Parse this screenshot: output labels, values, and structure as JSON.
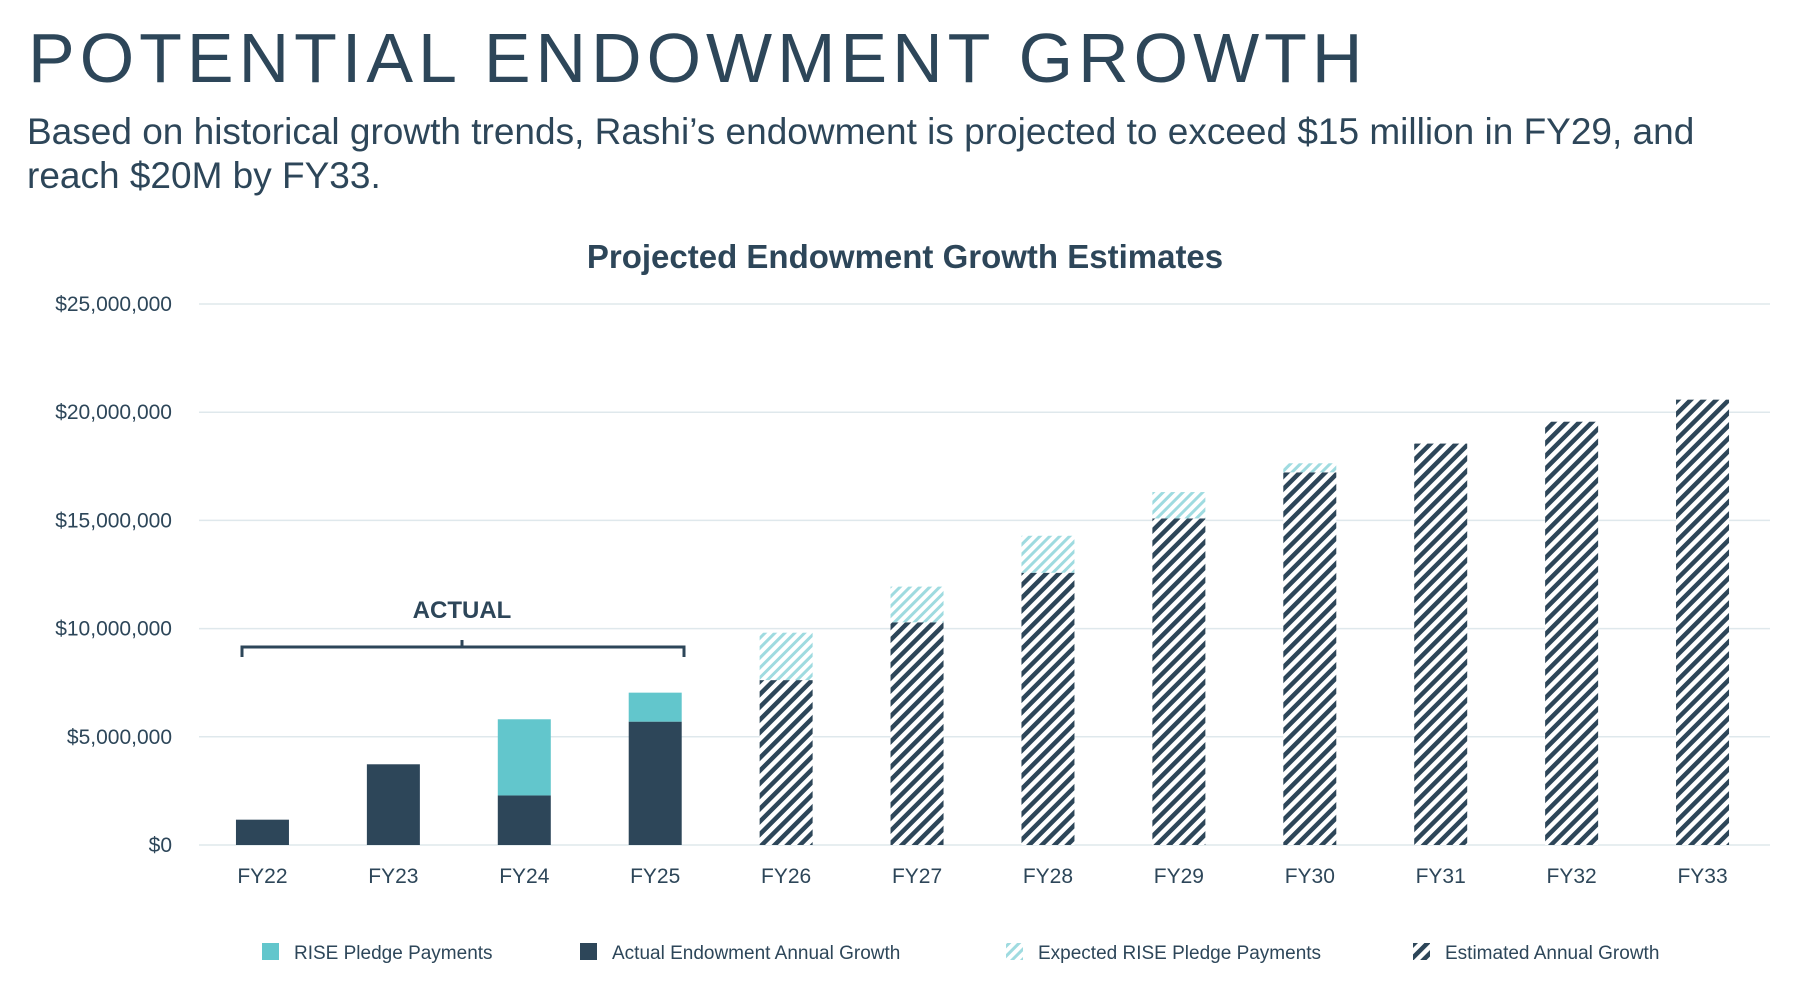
{
  "header": {
    "title": "POTENTIAL ENDOWMENT GROWTH",
    "subtitle": "Based on historical growth trends, Rashi’s endowment is projected to exceed $15 million in FY29, and reach $20M by FY33."
  },
  "chart_data": {
    "type": "bar",
    "stacked": true,
    "title": "Projected Endowment Growth Estimates",
    "xlabel": "",
    "ylabel": "",
    "ylim": [
      0,
      25000000
    ],
    "yticks": [
      0,
      5000000,
      10000000,
      15000000,
      20000000,
      25000000
    ],
    "ytick_labels": [
      "$0",
      "$5,000,000",
      "$10,000,000",
      "$15,000,000",
      "$20,000,000",
      "$25,000,000"
    ],
    "grid": true,
    "categories": [
      "FY22",
      "FY23",
      "FY24",
      "FY25",
      "FY26",
      "FY27",
      "FY28",
      "FY29",
      "FY30",
      "FY31",
      "FY32",
      "FY33"
    ],
    "series": [
      {
        "name": "Actual Endowment Annual Growth",
        "color": "#2d4659",
        "pattern": "solid",
        "values": [
          1170000,
          3730000,
          2290000,
          5700000,
          0,
          0,
          0,
          0,
          0,
          0,
          0,
          0
        ]
      },
      {
        "name": "RISE Pledge Payments",
        "color": "#62c6cc",
        "pattern": "solid",
        "values": [
          0,
          0,
          3520000,
          1340000,
          0,
          0,
          0,
          0,
          0,
          0,
          0,
          0
        ]
      },
      {
        "name": "Estimated Annual Growth",
        "color": "#2d4659",
        "pattern": "hatch",
        "values": [
          0,
          0,
          0,
          0,
          7620000,
          10290000,
          12580000,
          15090000,
          17220000,
          18550000,
          19560000,
          20580000
        ]
      },
      {
        "name": "Expected RISE Pledge Payments",
        "color": "#9fdbe0",
        "pattern": "hatch",
        "values": [
          0,
          0,
          0,
          0,
          2190000,
          1650000,
          1710000,
          1220000,
          420000,
          0,
          0,
          0
        ]
      }
    ],
    "legend_order": [
      "RISE Pledge Payments",
      "Actual Endowment Annual Growth",
      "Expected RISE Pledge Payments",
      "Estimated Annual Growth"
    ],
    "legend_position": "bottom",
    "annotations": [
      {
        "text": "ACTUAL",
        "spans": [
          "FY22",
          "FY25"
        ]
      }
    ]
  }
}
